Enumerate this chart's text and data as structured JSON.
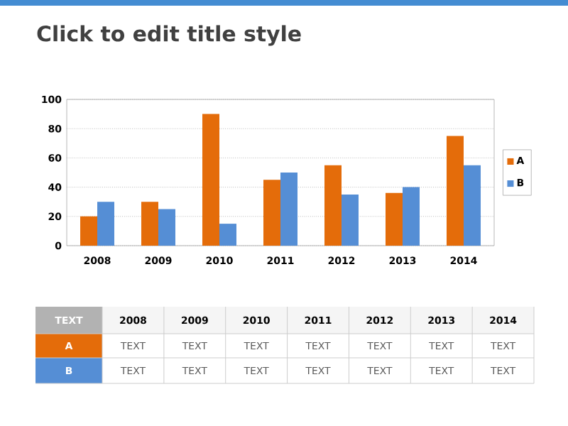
{
  "chart_data": {
    "type": "bar",
    "title": "Click to edit title style",
    "categories": [
      "2008",
      "2009",
      "2010",
      "2011",
      "2012",
      "2013",
      "2014"
    ],
    "series": [
      {
        "name": "A",
        "color": "#e46c0a",
        "values": [
          20,
          30,
          90,
          45,
          55,
          36,
          75
        ]
      },
      {
        "name": "B",
        "color": "#558ed5",
        "values": [
          30,
          25,
          15,
          50,
          35,
          40,
          55
        ]
      }
    ],
    "ylim": [
      0,
      100
    ],
    "yticks": [
      0,
      20,
      40,
      60,
      80,
      100
    ],
    "grid": "y",
    "legend": "right",
    "annotations": [
      "TEXT",
      "2008",
      "2009",
      "2010",
      "2011",
      "2012",
      "2013",
      "2014",
      "A",
      "TEXT",
      "TEXT",
      "TEXT",
      "TEXT",
      "TEXT",
      "TEXT",
      "TEXT",
      "B",
      "TEXT",
      "TEXT",
      "TEXT",
      "TEXT",
      "TEXT",
      "TEXT",
      "TEXT"
    ]
  }
}
